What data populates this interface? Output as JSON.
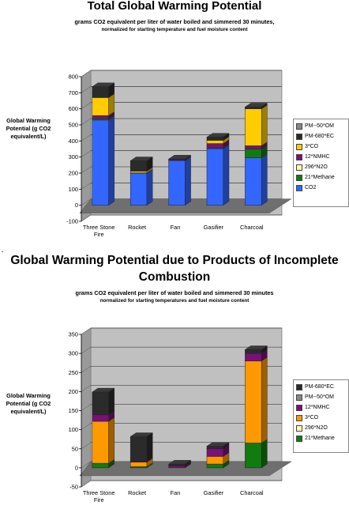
{
  "charts": [
    {
      "title": "Total Global Warming Potential",
      "subtitle_line1": "grams CO2 equivalent per liter of water boiled and simmered 30 minutes,",
      "subtitle_line2": "normalized for starting temperature and fuel moisture content",
      "ylabel": "Global Warming Potential (g CO2 equivalent/L)"
    },
    {
      "title": "Global Warming Potential due to Products of Incomplete Combustion",
      "subtitle_line1": "grams CO2 equivalent per liter of water boiled and simmered 30 minutes",
      "subtitle_line2": "normalized for starting temperatures and fuel moisture content",
      "ylabel": "Global Warming Potential (g CO2 equivalent/L)"
    }
  ],
  "chart_data": [
    {
      "type": "bar",
      "stacked": true,
      "three_d": true,
      "title": "Total Global Warming Potential",
      "subtitle": "grams CO2 equivalent per liter of water boiled and simmered 30 minutes, normalized for starting temperature and fuel moisture content",
      "ylabel": "Global Warming Potential (g CO2 equivalent/L)",
      "xlabel": "",
      "categories": [
        "Three Stone Fire",
        "Rocket",
        "Fan",
        "Gasifier",
        "Charcoal"
      ],
      "ylim": [
        -100,
        800
      ],
      "yticks": [
        -100,
        0,
        100,
        200,
        300,
        400,
        500,
        600,
        700,
        800
      ],
      "grid": true,
      "legend_position": "right",
      "series": [
        {
          "name": "CO2",
          "color": "#3366ff",
          "values": [
            530,
            200,
            278,
            352,
            295
          ]
        },
        {
          "name": "21*Methane",
          "color": "#117a11",
          "values": [
            8,
            0,
            0,
            5,
            55
          ]
        },
        {
          "name": "296*N2O",
          "color": "#fff7b3",
          "values": [
            0,
            0,
            0,
            0,
            0
          ]
        },
        {
          "name": "12*NMHC",
          "color": "#7a107a",
          "values": [
            20,
            2,
            5,
            27,
            20
          ]
        },
        {
          "name": "3*CO",
          "color": "#ffcc00",
          "values": [
            112,
            10,
            0,
            20,
            230
          ]
        },
        {
          "name": "PM-680*EC",
          "color": "#2b2b2b",
          "values": [
            68,
            65,
            5,
            20,
            12
          ]
        },
        {
          "name": "PM--50*OM",
          "color": "#888888",
          "values": [
            0,
            0,
            0,
            0,
            0
          ]
        }
      ]
    },
    {
      "type": "bar",
      "stacked": true,
      "three_d": true,
      "title": "Global Warming Potential due to Products of Incomplete Combustion",
      "subtitle": "grams CO2 equivalent per liter of water boiled and simmered 30 minutes normalized for starting temperatures and fuel moisture content",
      "ylabel": "Global Warming Potential (g CO2 equivalent/L)",
      "xlabel": "",
      "categories": [
        "Three Stone Fire",
        "Rocket",
        "Fan",
        "Gasifier",
        "Charcoal"
      ],
      "ylim": [
        -50,
        350
      ],
      "yticks": [
        -50,
        0,
        50,
        100,
        150,
        200,
        250,
        300,
        350
      ],
      "grid": true,
      "legend_position": "right",
      "series": [
        {
          "name": "21*Methane",
          "color": "#117a11",
          "values": [
            12,
            3,
            0,
            10,
            65
          ]
        },
        {
          "name": "296*N2O",
          "color": "#fff7b3",
          "values": [
            0,
            0,
            0,
            0,
            0
          ]
        },
        {
          "name": "3*CO",
          "color": "#ff9900",
          "values": [
            110,
            12,
            0,
            20,
            215
          ]
        },
        {
          "name": "12*NMHC",
          "color": "#7a107a",
          "values": [
            17,
            2,
            5,
            20,
            20
          ]
        },
        {
          "name": "PM--50*OM",
          "color": "#888888",
          "values": [
            0,
            0,
            0,
            0,
            0
          ]
        },
        {
          "name": "PM-680*EC",
          "color": "#2b2b2b",
          "values": [
            60,
            65,
            5,
            7,
            10
          ]
        }
      ]
    }
  ],
  "legends": [
    [
      "PM--50*OM",
      "PM-680*EC",
      "3*CO",
      "12*NMHC",
      "296*N2O",
      "21*Methane",
      "CO2"
    ],
    [
      "PM-680*EC",
      "PM--50*OM",
      "12*NMHC",
      "3*CO",
      "296*N2O",
      "21*Methane"
    ]
  ]
}
